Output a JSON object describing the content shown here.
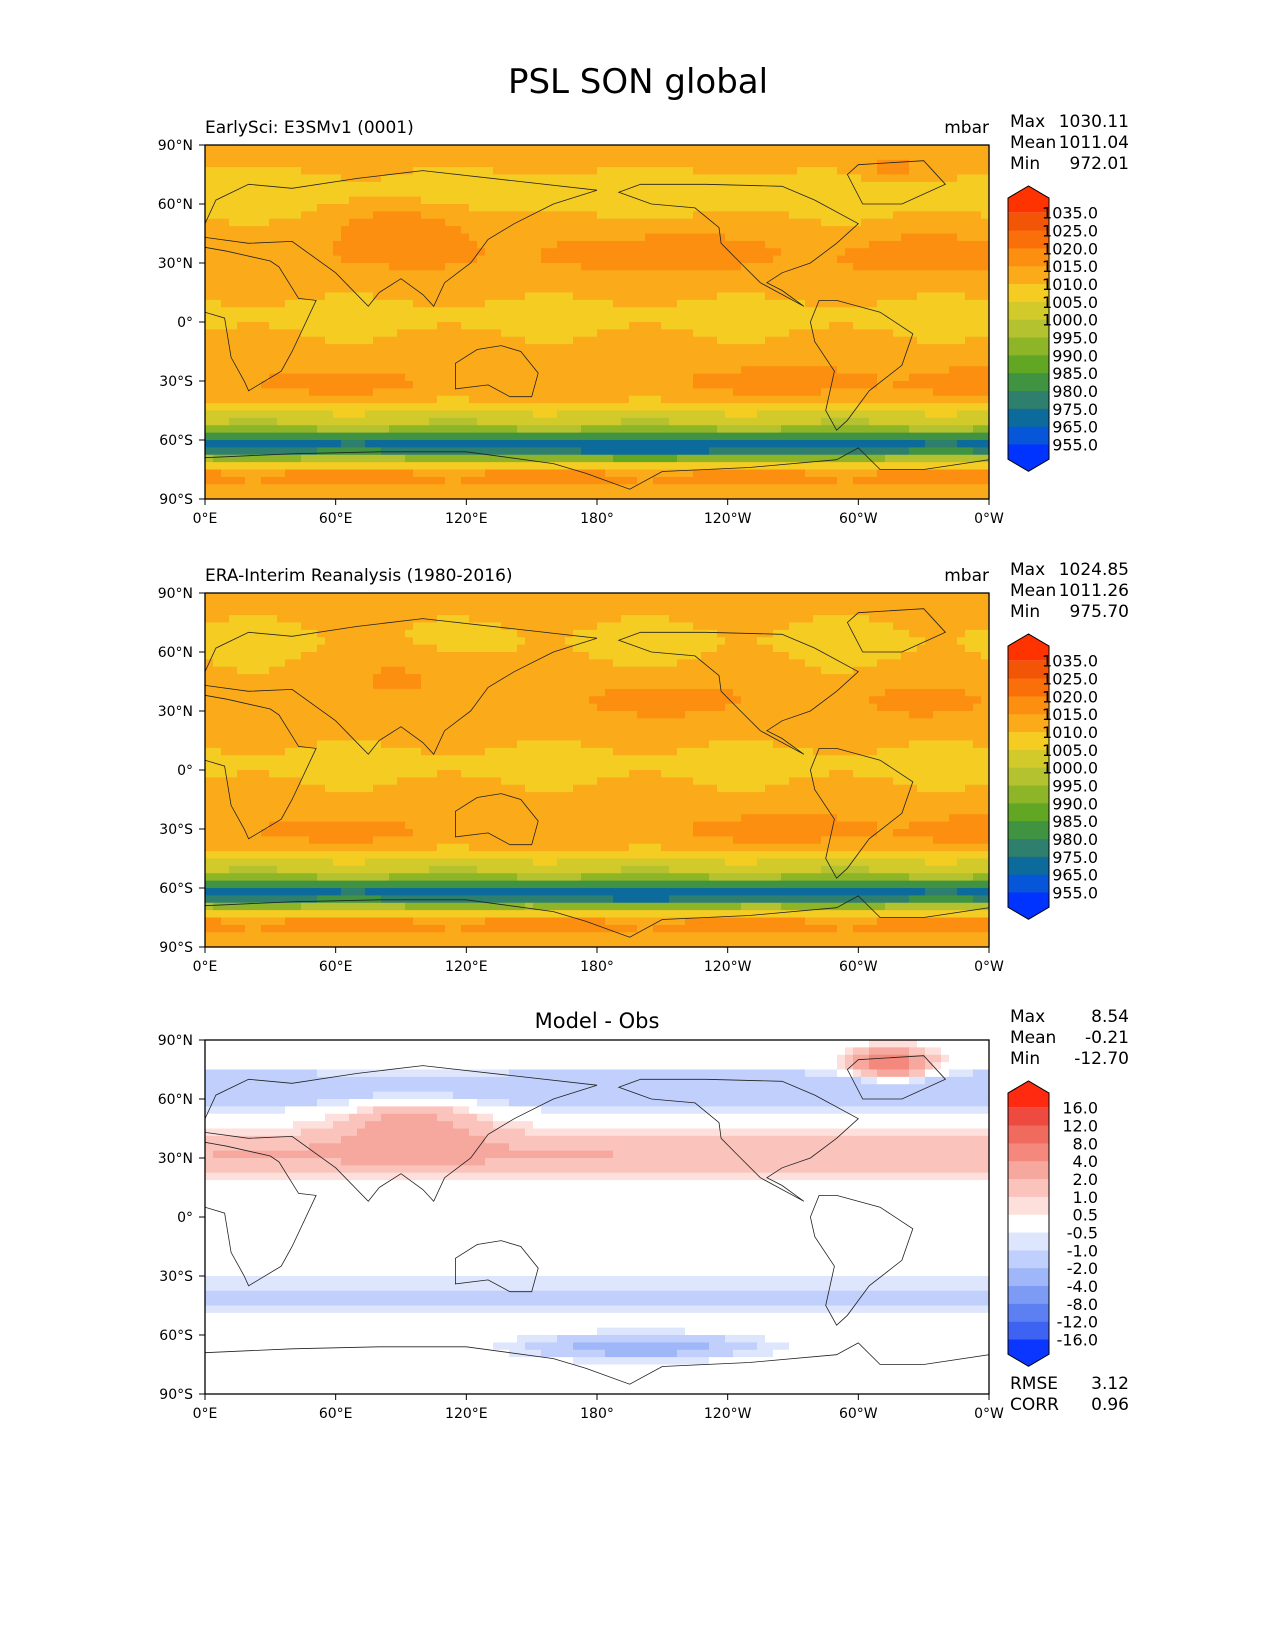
{
  "title": "PSL SON global",
  "chart_data": [
    {
      "type": "heatmap",
      "title": "EarlySci: E3SMv1 (0001)",
      "units": "mbar",
      "stats": [
        {
          "label": "Max",
          "value": "1030.11"
        },
        {
          "label": "Mean",
          "value": "1011.04"
        },
        {
          "label": "Min",
          "value": "972.01"
        }
      ],
      "xlabels": [
        "0°E",
        "60°E",
        "120°E",
        "180°",
        "120°W",
        "60°W",
        "0°W"
      ],
      "ylabels": [
        "90°N",
        "60°N",
        "30°N",
        "0°",
        "30°S",
        "60°S",
        "90°S"
      ],
      "colorbar": {
        "labels": [
          "1035.0",
          "1025.0",
          "1020.0",
          "1015.0",
          "1010.0",
          "1005.0",
          "1000.0",
          "995.0",
          "990.0",
          "985.0",
          "980.0",
          "975.0",
          "965.0",
          "955.0"
        ],
        "colors": [
          "#ff3300",
          "#f25505",
          "#fb6f0a",
          "#fd8f10",
          "#fbab19",
          "#f5cc22",
          "#d2c92a",
          "#b3c22e",
          "#8db527",
          "#62a723",
          "#3f9341",
          "#2f7f6e",
          "#0c6b9a",
          "#0756d9",
          "#0033ff"
        ]
      },
      "field": "model"
    },
    {
      "type": "heatmap",
      "title": "ERA-Interim Reanalysis (1980-2016)",
      "units": "mbar",
      "stats": [
        {
          "label": "Max",
          "value": "1024.85"
        },
        {
          "label": "Mean",
          "value": "1011.26"
        },
        {
          "label": "Min",
          "value": "975.70"
        }
      ],
      "xlabels": [
        "0°E",
        "60°E",
        "120°E",
        "180°",
        "120°W",
        "60°W",
        "0°W"
      ],
      "ylabels": [
        "90°N",
        "60°N",
        "30°N",
        "0°",
        "30°S",
        "60°S",
        "90°S"
      ],
      "colorbar": {
        "labels": [
          "1035.0",
          "1025.0",
          "1020.0",
          "1015.0",
          "1010.0",
          "1005.0",
          "1000.0",
          "995.0",
          "990.0",
          "985.0",
          "980.0",
          "975.0",
          "965.0",
          "955.0"
        ],
        "colors": [
          "#ff3300",
          "#f25505",
          "#fb6f0a",
          "#fd8f10",
          "#fbab19",
          "#f5cc22",
          "#d2c92a",
          "#b3c22e",
          "#8db527",
          "#62a723",
          "#3f9341",
          "#2f7f6e",
          "#0c6b9a",
          "#0756d9",
          "#0033ff"
        ]
      },
      "field": "obs"
    },
    {
      "type": "heatmap",
      "title": "Model - Obs",
      "units": "",
      "stats": [
        {
          "label": "Max",
          "value": "8.54"
        },
        {
          "label": "Mean",
          "value": "-0.21"
        },
        {
          "label": "Min",
          "value": "-12.70"
        }
      ],
      "extra_stats": [
        {
          "label": "RMSE",
          "value": "3.12"
        },
        {
          "label": "CORR",
          "value": "0.96"
        }
      ],
      "xlabels": [
        "0°E",
        "60°E",
        "120°E",
        "180°",
        "120°W",
        "60°W",
        "0°W"
      ],
      "ylabels": [
        "90°N",
        "60°N",
        "30°N",
        "0°",
        "30°S",
        "60°S",
        "90°S"
      ],
      "colorbar": {
        "labels": [
          "16.0",
          "12.0",
          "8.0",
          "4.0",
          "2.0",
          "1.0",
          "0.5",
          "-0.5",
          "-1.0",
          "-2.0",
          "-4.0",
          "-8.0",
          "-12.0",
          "-16.0"
        ],
        "colors": [
          "#ff2a10",
          "#ef4a40",
          "#f06a5e",
          "#f4887c",
          "#f7a89e",
          "#fac4bc",
          "#fde0db",
          "#ffffff",
          "#dde6fd",
          "#c0cffb",
          "#9fb6f8",
          "#7d9bf5",
          "#5c80f2",
          "#3e62f2",
          "#0a36ff"
        ]
      },
      "field": "diff"
    }
  ]
}
